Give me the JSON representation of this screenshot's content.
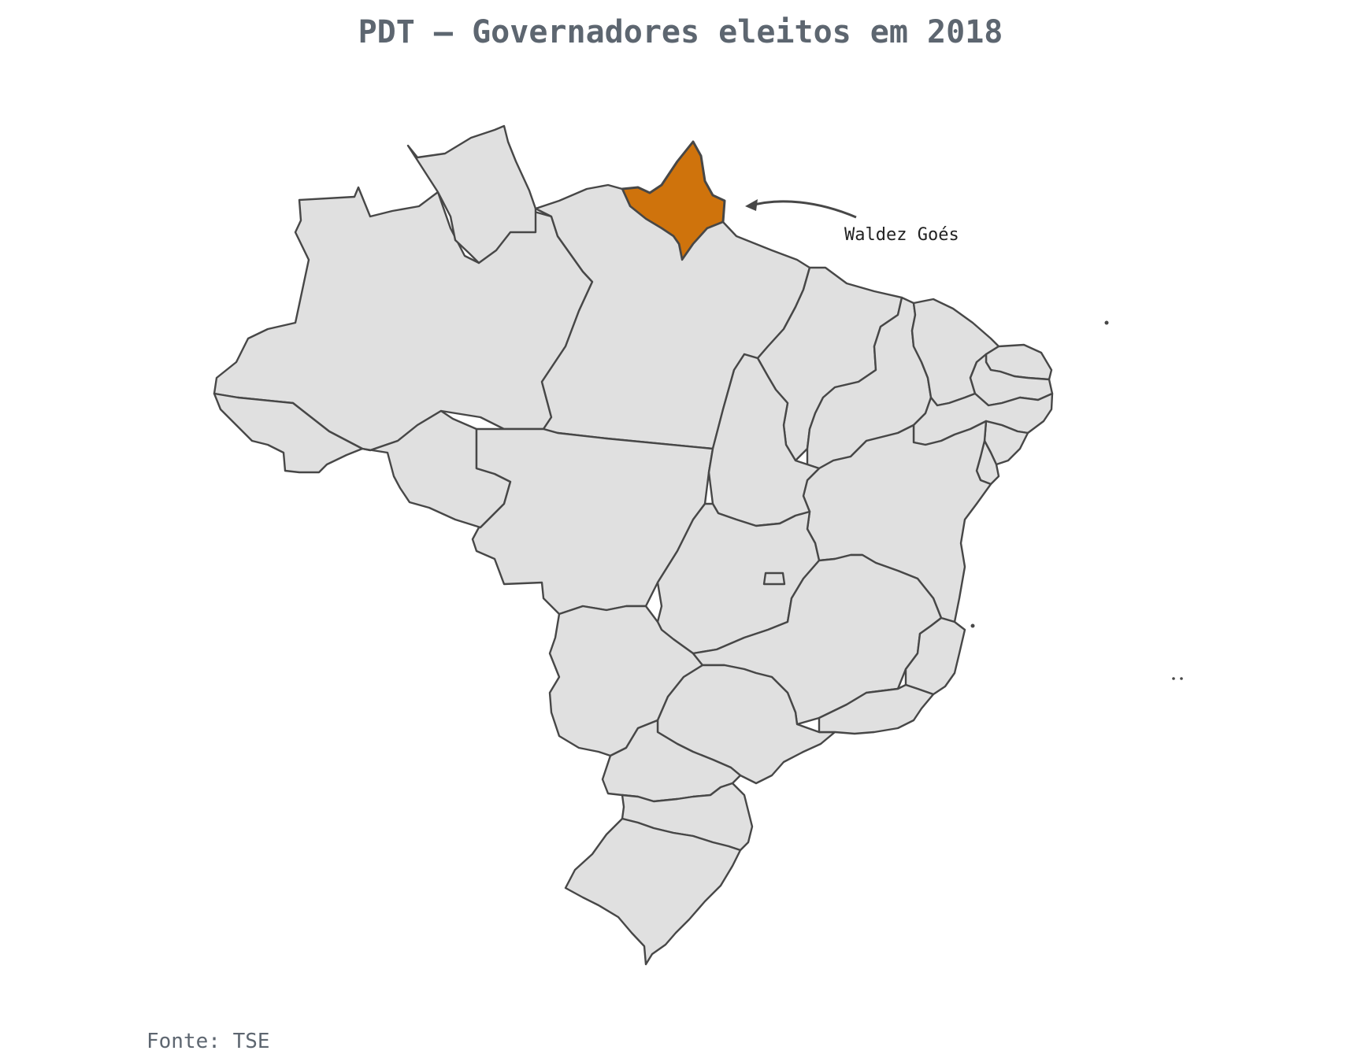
{
  "title": "PDT – Governadores eleitos em 2018",
  "annotation": {
    "label": "Waldez Goés",
    "state": "AP"
  },
  "source": "Fonte: TSE",
  "colors": {
    "highlight": "#cf730c",
    "default_fill": "#e0e0e0",
    "border": "#474747",
    "title": "#5d6670"
  },
  "states": [
    {
      "code": "AM",
      "highlighted": false
    },
    {
      "code": "RR",
      "highlighted": false
    },
    {
      "code": "AP",
      "highlighted": true
    },
    {
      "code": "PA",
      "highlighted": false
    },
    {
      "code": "AC",
      "highlighted": false
    },
    {
      "code": "RO",
      "highlighted": false
    },
    {
      "code": "MT",
      "highlighted": false
    },
    {
      "code": "MA",
      "highlighted": false
    },
    {
      "code": "PI",
      "highlighted": false
    },
    {
      "code": "CE",
      "highlighted": false
    },
    {
      "code": "RN",
      "highlighted": false
    },
    {
      "code": "PB",
      "highlighted": false
    },
    {
      "code": "PE",
      "highlighted": false
    },
    {
      "code": "AL",
      "highlighted": false
    },
    {
      "code": "SE",
      "highlighted": false
    },
    {
      "code": "BA",
      "highlighted": false
    },
    {
      "code": "TO",
      "highlighted": false
    },
    {
      "code": "GO",
      "highlighted": false
    },
    {
      "code": "DF",
      "highlighted": false
    },
    {
      "code": "MG",
      "highlighted": false
    },
    {
      "code": "ES",
      "highlighted": false
    },
    {
      "code": "MS",
      "highlighted": false
    },
    {
      "code": "SP",
      "highlighted": false
    },
    {
      "code": "RJ",
      "highlighted": false
    },
    {
      "code": "PR",
      "highlighted": false
    },
    {
      "code": "SC",
      "highlighted": false
    },
    {
      "code": "RS",
      "highlighted": false
    }
  ]
}
